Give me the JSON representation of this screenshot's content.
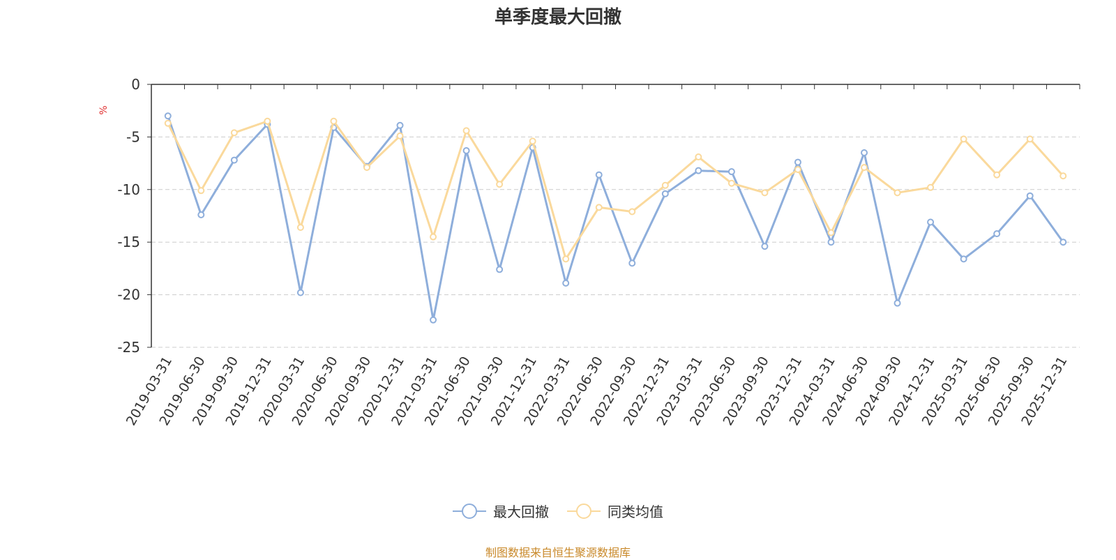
{
  "chart_data": {
    "type": "line",
    "title": "单季度最大回撤",
    "ylabel": "%",
    "xlabel": "",
    "ylim": [
      -25,
      0
    ],
    "yticks": [
      0,
      -5,
      -10,
      -15,
      -20,
      -25
    ],
    "categories": [
      "2019-03-31",
      "2019-06-30",
      "2019-09-30",
      "2019-12-31",
      "2020-03-31",
      "2020-06-30",
      "2020-09-30",
      "2020-12-31",
      "2021-03-31",
      "2021-06-30",
      "2021-09-30",
      "2021-12-31",
      "2022-03-31",
      "2022-06-30",
      "2022-09-30",
      "2022-12-31",
      "2023-03-31",
      "2023-06-30",
      "2023-09-30",
      "2023-12-31",
      "2024-03-31",
      "2024-06-30",
      "2024-09-30",
      "2024-12-31",
      "2025-03-31",
      "2025-06-30",
      "2025-09-30",
      "2025-12-31"
    ],
    "series": [
      {
        "name": "最大回撤",
        "color": "#8eaedb",
        "values": [
          -3.0,
          -12.4,
          -7.2,
          -3.8,
          -19.8,
          -4.1,
          -7.8,
          -3.9,
          -22.4,
          -6.3,
          -17.6,
          -6.0,
          -18.9,
          -8.6,
          -17.0,
          -10.4,
          -8.2,
          -8.3,
          -15.4,
          -7.4,
          -15.0,
          -6.5,
          -20.8,
          -13.1,
          -16.6,
          -14.2,
          -10.6,
          -15.0
        ]
      },
      {
        "name": "同类均值",
        "color": "#fad99c",
        "values": [
          -3.7,
          -10.1,
          -4.6,
          -3.5,
          -13.6,
          -3.5,
          -7.9,
          -4.9,
          -14.5,
          -4.4,
          -9.5,
          -5.4,
          -16.6,
          -11.7,
          -12.1,
          -9.6,
          -6.9,
          -9.4,
          -10.3,
          -8.1,
          -14.1,
          -7.9,
          -10.3,
          -9.8,
          -5.2,
          -8.6,
          -5.2,
          -8.7
        ]
      }
    ],
    "legend_position": "bottom",
    "grid": true
  },
  "source_note": "制图数据来自恒生聚源数据库"
}
